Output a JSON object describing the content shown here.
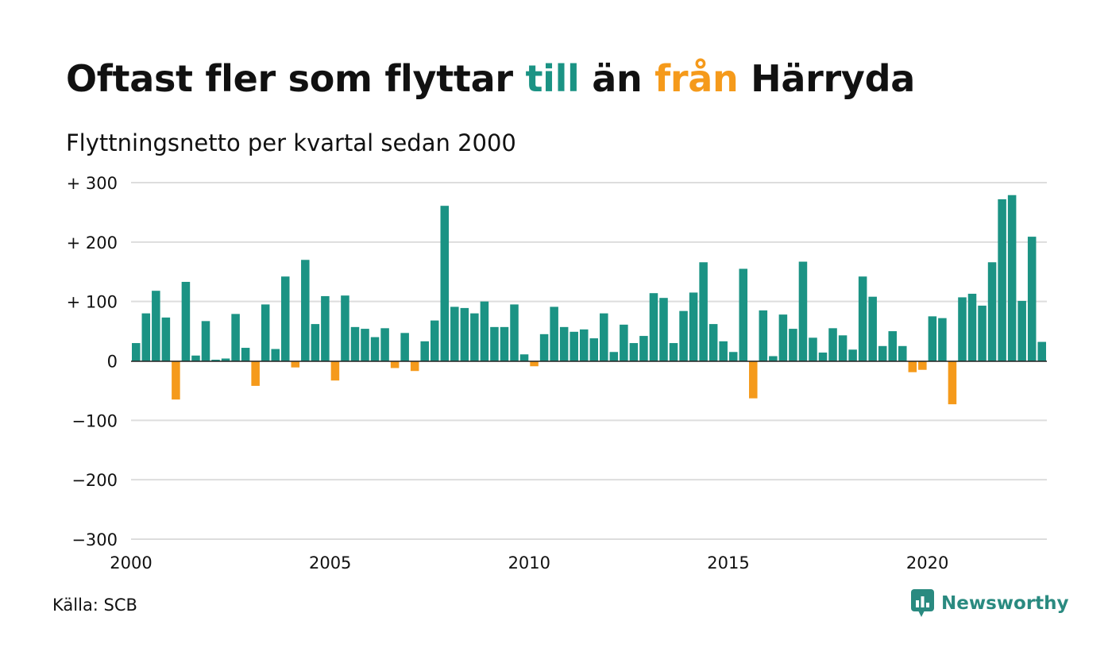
{
  "header": {
    "title_part1": "Oftast fler som flyttar ",
    "title_till": "till",
    "title_part2": " än ",
    "title_fran": "från",
    "title_part3": " Härryda",
    "subtitle": "Flyttningsnetto per kvartal sedan 2000"
  },
  "footer": {
    "source": "Källa: SCB",
    "brand": "Newsworthy",
    "brand_icon": "bar-chart-speech-bubble-icon"
  },
  "colors": {
    "positive": "#1b9384",
    "negative": "#f59a1b",
    "title_till": "#1b9384",
    "title_fran": "#f59a1b",
    "grid": "#dddddd",
    "brand": "#2a8a80"
  },
  "chart_data": {
    "type": "bar",
    "title": "Oftast fler som flyttar till än från Härryda",
    "subtitle": "Flyttningsnetto per kvartal sedan 2000",
    "xlabel": "",
    "ylabel": "",
    "x_start_year": 2000,
    "periods_per_year": 4,
    "xticks": [
      2000,
      2005,
      2010,
      2015,
      2020
    ],
    "yticks": [
      300,
      200,
      100,
      0,
      -100,
      -200,
      -300
    ],
    "ytick_labels": [
      "+ 300",
      "+ 200",
      "+ 100",
      "0",
      "−100",
      "−200",
      "−300"
    ],
    "ylim": [
      -300,
      300
    ],
    "grid": true,
    "legend": "none",
    "values": [
      30,
      80,
      118,
      73,
      -65,
      133,
      9,
      67,
      2,
      4,
      79,
      22,
      -42,
      95,
      20,
      142,
      -11,
      170,
      62,
      109,
      -33,
      110,
      57,
      54,
      40,
      55,
      -12,
      47,
      -17,
      33,
      68,
      261,
      91,
      89,
      80,
      100,
      57,
      57,
      95,
      11,
      -9,
      45,
      91,
      57,
      49,
      53,
      38,
      80,
      15,
      61,
      30,
      42,
      114,
      106,
      30,
      84,
      115,
      166,
      62,
      33,
      15,
      155,
      -63,
      85,
      8,
      78,
      54,
      167,
      39,
      14,
      55,
      43,
      19,
      142,
      108,
      25,
      50,
      25,
      -19,
      -15,
      75,
      72,
      -73,
      107,
      113,
      93,
      166,
      272,
      279,
      101,
      209,
      32
    ]
  }
}
